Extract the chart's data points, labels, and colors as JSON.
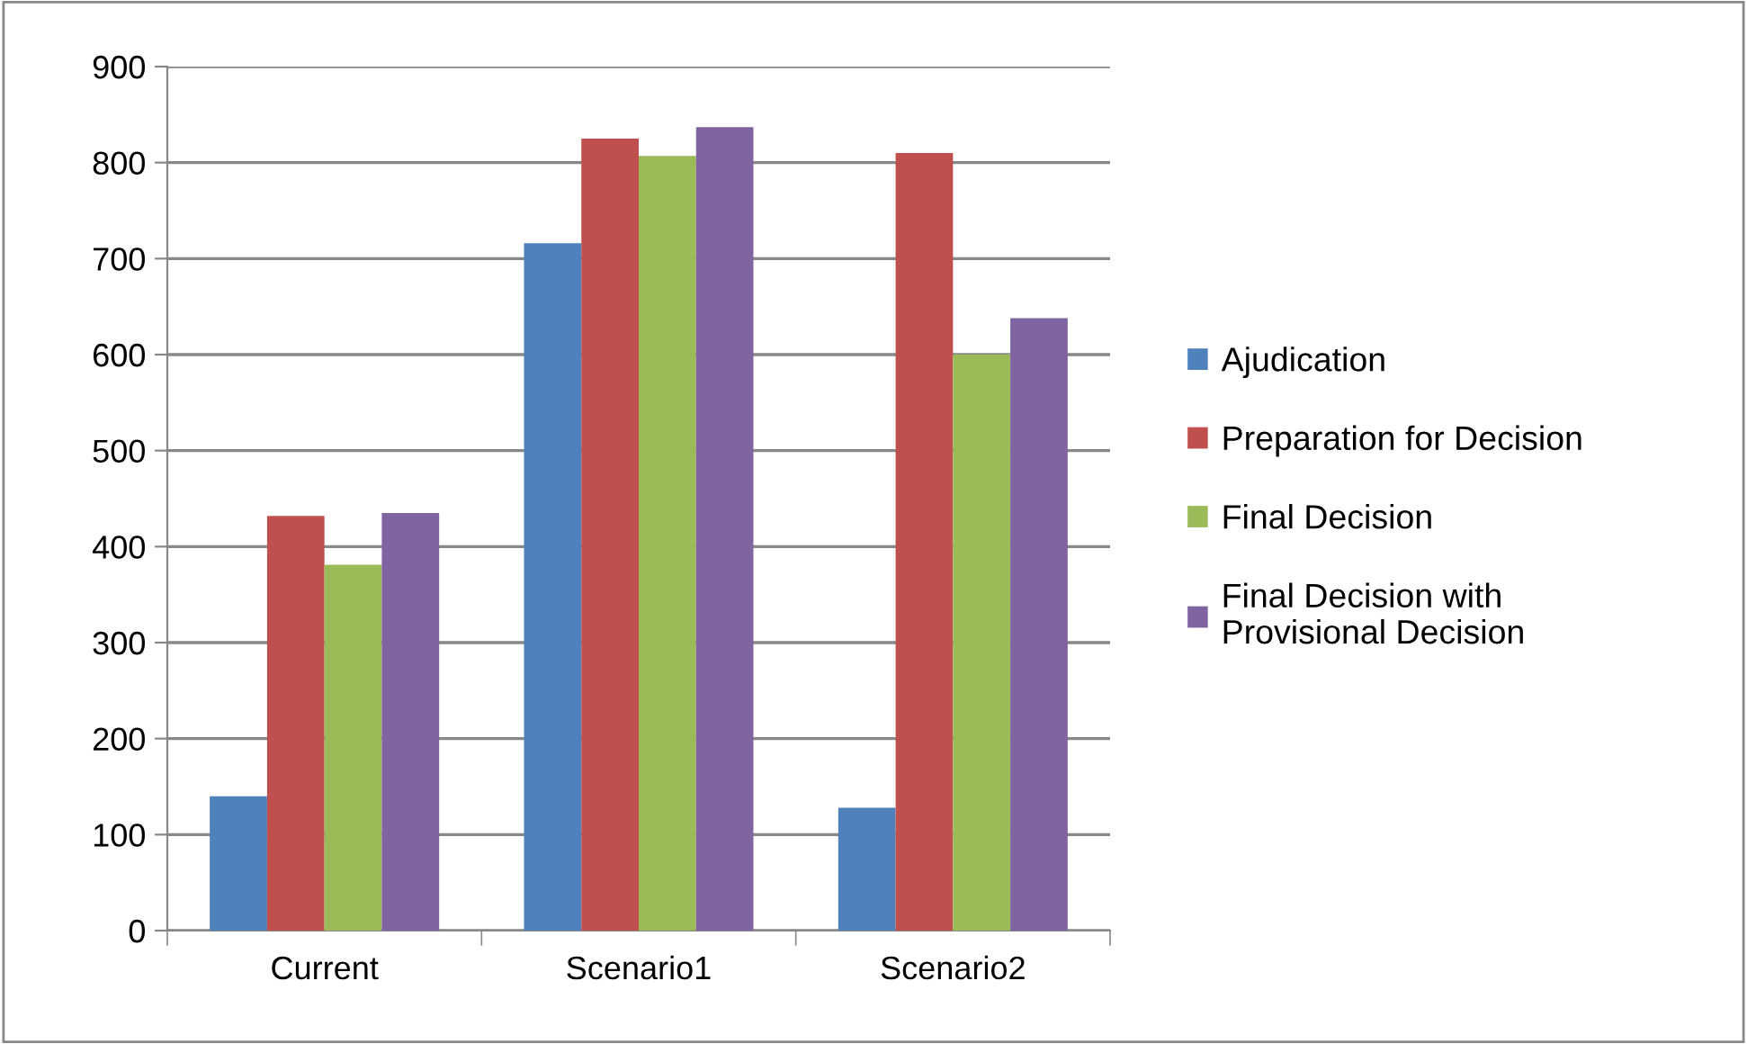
{
  "chart_data": {
    "type": "bar",
    "categories": [
      "Current",
      "Scenario1",
      "Scenario2"
    ],
    "series": [
      {
        "name": "Ajudication",
        "color": "#4f81bd",
        "values": [
          140,
          716,
          128
        ]
      },
      {
        "name": "Preparation for Decision",
        "color": "#c0504d",
        "values": [
          432,
          825,
          810
        ]
      },
      {
        "name": "Final Decision",
        "color": "#9bbb59",
        "values": [
          381,
          807,
          600
        ]
      },
      {
        "name": "Final Decision with\nProvisional Decision",
        "color": "#8064a2",
        "values": [
          435,
          837,
          638
        ]
      }
    ],
    "ylim": [
      0,
      900
    ],
    "yticks": [
      0,
      100,
      200,
      300,
      400,
      500,
      600,
      700,
      800,
      900
    ],
    "grid": "y",
    "legend": "right"
  }
}
